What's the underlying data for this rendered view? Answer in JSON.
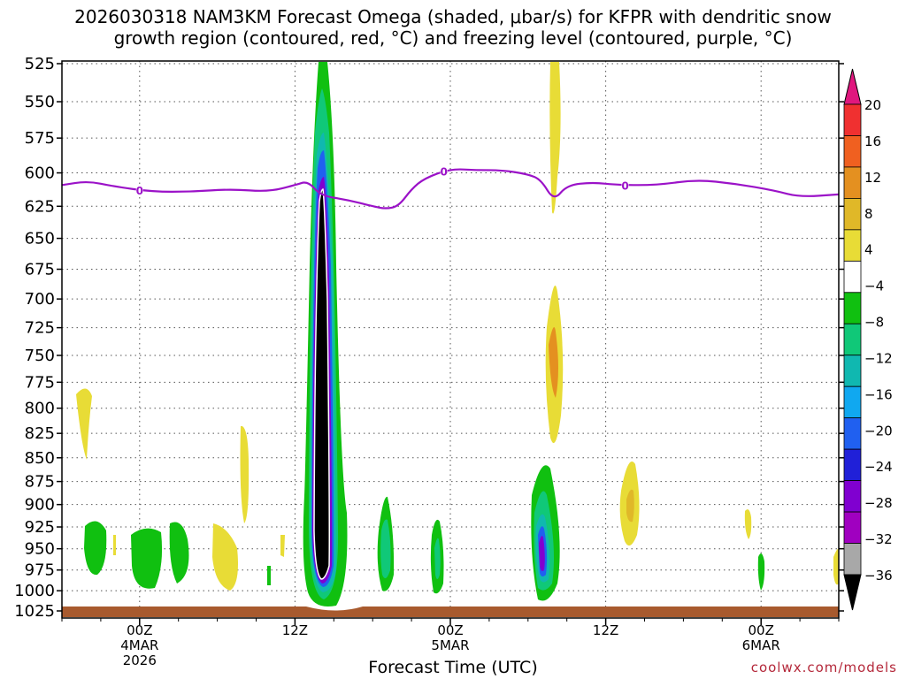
{
  "chart_data": {
    "type": "heatmap",
    "title_line1": "2026030318 NAM3KM Forecast Omega (shaded, μbar/s) for KFPR with dendritic snow",
    "title_line2": "growth region (contoured, red, °C) and freezing level (contoured, purple, °C)",
    "xlabel": "Forecast Time (UTC)",
    "y_ticks": [
      "525",
      "550",
      "575",
      "600",
      "625",
      "650",
      "675",
      "700",
      "725",
      "750",
      "775",
      "800",
      "825",
      "850",
      "875",
      "900",
      "925",
      "950",
      "975",
      "1000",
      "1025"
    ],
    "x_ticks": [
      {
        "hour": 6,
        "label": "00Z",
        "sub1": "4MAR",
        "sub2": "2026"
      },
      {
        "hour": 18,
        "label": "12Z",
        "sub1": "",
        "sub2": ""
      },
      {
        "hour": 30,
        "label": "00Z",
        "sub1": "5MAR",
        "sub2": ""
      },
      {
        "hour": 42,
        "label": "12Z",
        "sub1": "",
        "sub2": ""
      },
      {
        "hour": 54,
        "label": "00Z",
        "sub1": "6MAR",
        "sub2": ""
      }
    ],
    "x_range_hours": [
      0,
      60
    ],
    "y_range_hpa": [
      525,
      1025
    ],
    "freezing_level_label": "0",
    "freezing_level_hpa": [
      {
        "h": 0,
        "p": 609
      },
      {
        "h": 2,
        "p": 606
      },
      {
        "h": 4,
        "p": 610
      },
      {
        "h": 7,
        "p": 614
      },
      {
        "h": 10,
        "p": 614
      },
      {
        "h": 13,
        "p": 612
      },
      {
        "h": 16,
        "p": 614
      },
      {
        "h": 18,
        "p": 609
      },
      {
        "h": 19,
        "p": 606
      },
      {
        "h": 20,
        "p": 617
      },
      {
        "h": 22,
        "p": 620
      },
      {
        "h": 24,
        "p": 625
      },
      {
        "h": 25,
        "p": 627
      },
      {
        "h": 26,
        "p": 625
      },
      {
        "h": 27,
        "p": 612
      },
      {
        "h": 28,
        "p": 604
      },
      {
        "h": 30,
        "p": 597
      },
      {
        "h": 32,
        "p": 598
      },
      {
        "h": 34,
        "p": 598
      },
      {
        "h": 36,
        "p": 601
      },
      {
        "h": 37,
        "p": 605
      },
      {
        "h": 38,
        "p": 621
      },
      {
        "h": 39,
        "p": 609
      },
      {
        "h": 41,
        "p": 607
      },
      {
        "h": 43,
        "p": 609
      },
      {
        "h": 46,
        "p": 609
      },
      {
        "h": 49,
        "p": 605
      },
      {
        "h": 52,
        "p": 608
      },
      {
        "h": 55,
        "p": 613
      },
      {
        "h": 57,
        "p": 618
      },
      {
        "h": 60,
        "p": 616
      }
    ],
    "freezing_level_label_hours": [
      6,
      29.5,
      43.5
    ],
    "colorbar": {
      "levels": [
        "20",
        "16",
        "12",
        "8",
        "4",
        "−4",
        "−8",
        "−12",
        "−16",
        "−20",
        "−24",
        "−28",
        "−32",
        "−36"
      ],
      "colors": [
        "#e0177e",
        "#f03030",
        "#f06020",
        "#e49020",
        "#e0b828",
        "#e8dc36",
        "#ffffff",
        "#10c010",
        "#10c878",
        "#10b8b0",
        "#10a8f0",
        "#2060f0",
        "#2020d8",
        "#8000d0",
        "#a000c0",
        "#a8a8a8",
        "#000000"
      ]
    }
  },
  "watermark": "coolwx.com/models"
}
